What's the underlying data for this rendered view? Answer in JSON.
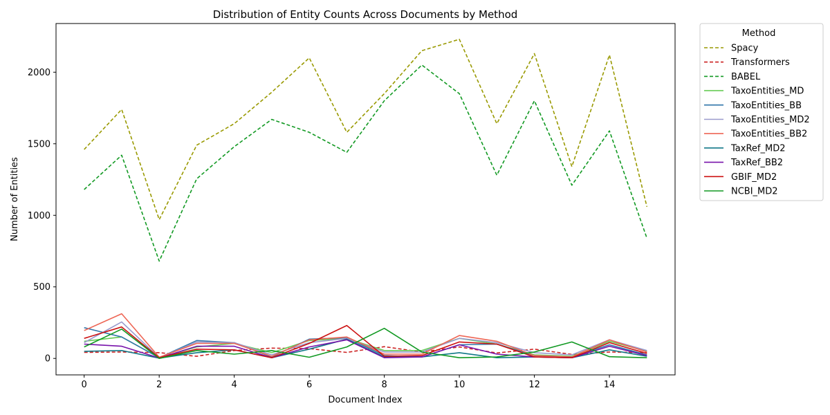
{
  "chart_data": {
    "type": "line",
    "title": "Distribution of Entity Counts Across Documents by Method",
    "xlabel": "Document Index",
    "ylabel": "Number of Entities",
    "xlim": [
      -0.75,
      15.75
    ],
    "ylim": [
      -115,
      2340
    ],
    "xticks": [
      0,
      2,
      4,
      6,
      8,
      10,
      12,
      14
    ],
    "yticks": [
      0,
      500,
      1000,
      1500,
      2000
    ],
    "grid": false,
    "legend": {
      "title": "Method",
      "placement": "outside-top-right"
    },
    "x": [
      0,
      1,
      2,
      3,
      4,
      5,
      6,
      7,
      8,
      9,
      10,
      11,
      12,
      13,
      14,
      15
    ],
    "series": [
      {
        "name": "Spacy",
        "color": "#999900",
        "dashed": true,
        "values": [
          1460,
          1740,
          970,
          1490,
          1640,
          1860,
          2100,
          1580,
          1850,
          2150,
          2230,
          1640,
          2130,
          1340,
          2120,
          1060
        ]
      },
      {
        "name": "Transformers",
        "color": "#cc2222",
        "dashed": true,
        "values": [
          42,
          45,
          40,
          15,
          55,
          72,
          68,
          42,
          82,
          45,
          80,
          38,
          65,
          28,
          45,
          40
        ]
      },
      {
        "name": "BABEL",
        "color": "#119922",
        "dashed": true,
        "values": [
          1180,
          1420,
          680,
          1255,
          1480,
          1670,
          1580,
          1440,
          1800,
          2050,
          1850,
          1280,
          1800,
          1210,
          1590,
          840
        ]
      },
      {
        "name": "TaxoEntities_MD",
        "color": "#66cc55",
        "dashed": false,
        "values": [
          120,
          150,
          5,
          80,
          105,
          40,
          125,
          140,
          55,
          55,
          140,
          100,
          25,
          15,
          120,
          50
        ]
      },
      {
        "name": "TaxoEntities_BB",
        "color": "#3377aa",
        "dashed": false,
        "values": [
          215,
          150,
          5,
          125,
          110,
          10,
          135,
          145,
          20,
          10,
          95,
          100,
          20,
          10,
          95,
          25
        ]
      },
      {
        "name": "TaxoEntities_MD2",
        "color": "#9999cc",
        "dashed": false,
        "values": [
          110,
          255,
          5,
          115,
          110,
          25,
          110,
          140,
          45,
          45,
          140,
          110,
          40,
          25,
          130,
          55
        ]
      },
      {
        "name": "TaxoEntities_BB2",
        "color": "#ee6655",
        "dashed": false,
        "values": [
          195,
          312,
          8,
          105,
          105,
          15,
          130,
          150,
          30,
          30,
          160,
          120,
          20,
          10,
          130,
          45
        ]
      },
      {
        "name": "TaxRef_MD2",
        "color": "#117788",
        "dashed": false,
        "values": [
          50,
          55,
          2,
          40,
          60,
          5,
          65,
          135,
          10,
          10,
          40,
          5,
          10,
          5,
          60,
          15
        ]
      },
      {
        "name": "TaxRef_BB2",
        "color": "#7711aa",
        "dashed": false,
        "values": [
          100,
          85,
          3,
          85,
          85,
          5,
          80,
          130,
          5,
          10,
          95,
          30,
          10,
          5,
          85,
          20
        ]
      },
      {
        "name": "GBIF_MD2",
        "color": "#cc1111",
        "dashed": false,
        "values": [
          140,
          220,
          5,
          65,
          60,
          5,
          105,
          230,
          15,
          20,
          115,
          100,
          10,
          5,
          110,
          35
        ]
      },
      {
        "name": "NCBI_MD2",
        "color": "#119922",
        "dashed": false,
        "values": [
          80,
          205,
          0,
          55,
          30,
          55,
          8,
          80,
          210,
          45,
          5,
          10,
          45,
          115,
          12,
          5
        ]
      }
    ]
  }
}
